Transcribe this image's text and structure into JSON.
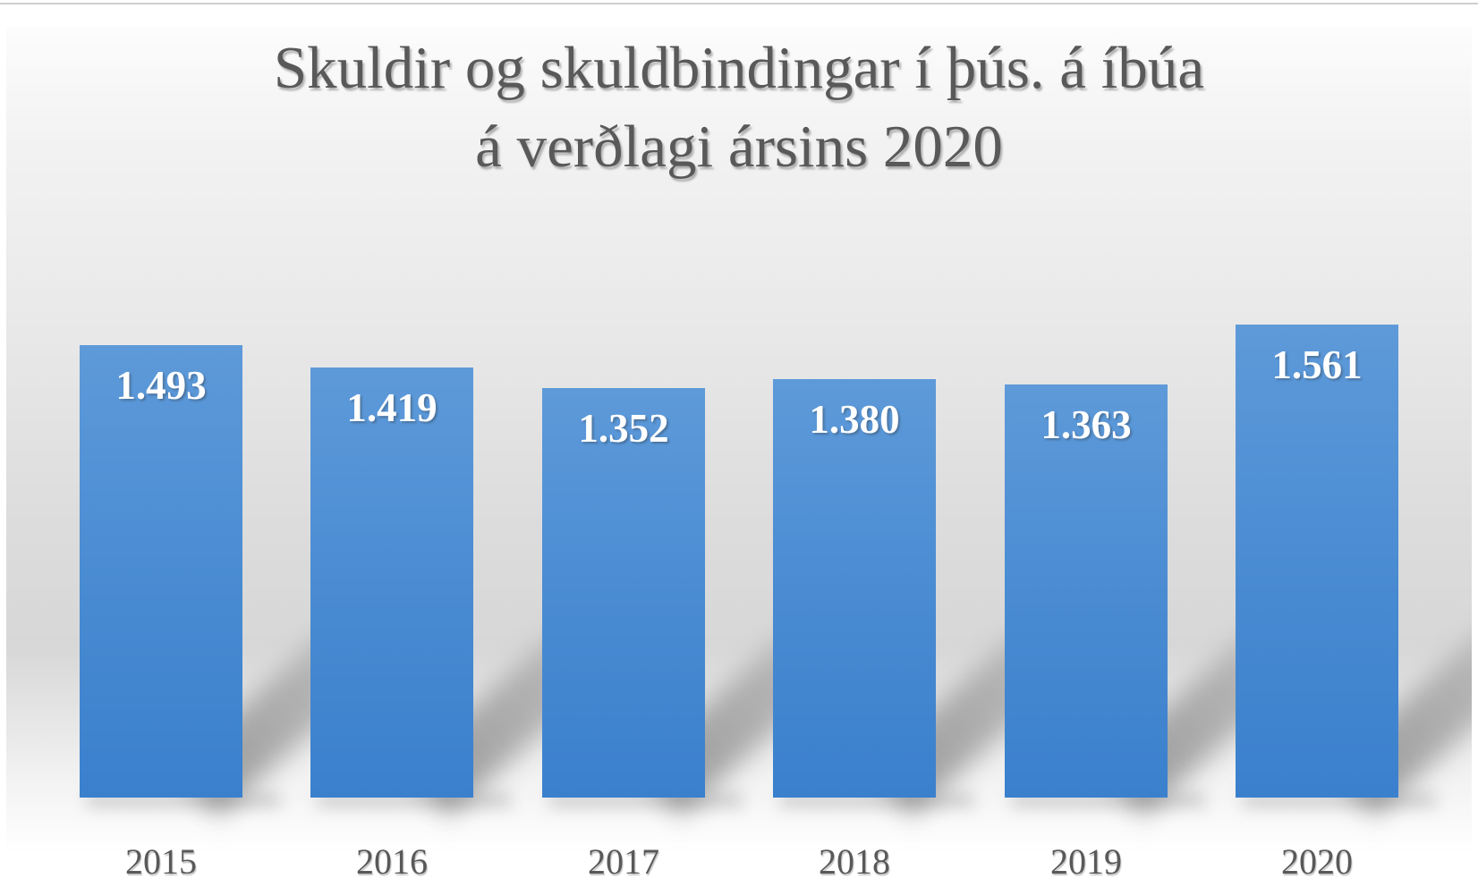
{
  "slide": {
    "title_line1": "Skuldir og skuldbindingar í þús. á íbúa",
    "title_line2": "á verðlagi ársins 2020"
  },
  "chart_data": {
    "type": "bar",
    "title": "Skuldir og skuldbindingar í þús. á íbúa á verðlagi ársins 2020",
    "categories": [
      "2015",
      "2016",
      "2017",
      "2018",
      "2019",
      "2020"
    ],
    "values": [
      1493,
      1419,
      1352,
      1380,
      1363,
      1561
    ],
    "value_labels": [
      "1.493",
      "1.419",
      "1.352",
      "1.380",
      "1.363",
      "1.561"
    ],
    "xlabel": "",
    "ylabel": "",
    "ylim": [
      0,
      1561
    ],
    "grid": false,
    "legend": false,
    "data_label_position": "inside-top",
    "colors": {
      "bar_top": "#5e9ad9",
      "bar_bottom": "#3a80cd",
      "data_label": "#ffffff",
      "category_label": "#595959",
      "title": "#595959",
      "background_mid": "#d7d7d7"
    }
  }
}
